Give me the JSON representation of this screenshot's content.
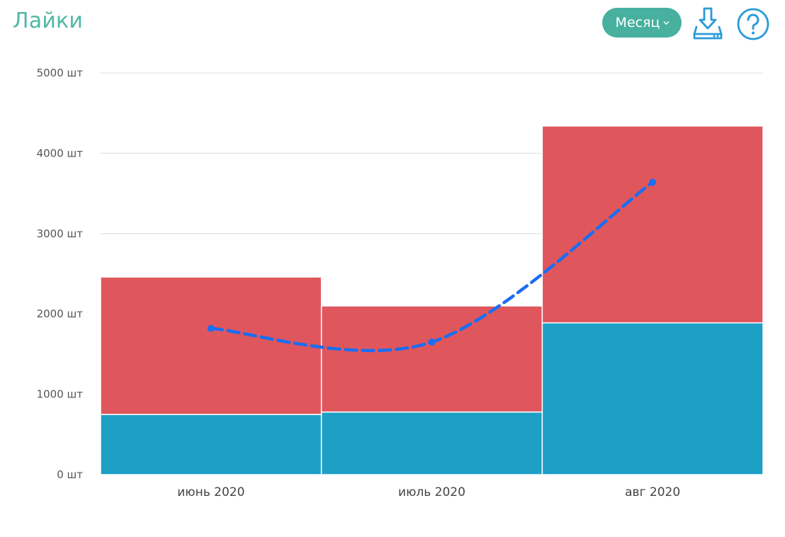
{
  "header": {
    "title": "Лайки",
    "period_label": "Месяц"
  },
  "icons": {
    "download": "download-icon",
    "help": "help-icon",
    "chevron": "chevron-down-icon"
  },
  "colors": {
    "accent": "#47b09f",
    "title": "#4fb8a6",
    "series_bottom": "#1e9fc6",
    "series_top": "#e0565d",
    "trend_line": "#1a6ef0",
    "icon": "#2a9bd8"
  },
  "chart_data": {
    "type": "bar",
    "stacked": true,
    "categories": [
      "июнь 2020",
      "июль 2020",
      "авг 2020"
    ],
    "series": [
      {
        "values": [
          750,
          780,
          1890
        ],
        "color": "#1e9fc6"
      },
      {
        "values": [
          1710,
          1320,
          2450
        ],
        "color": "#e0565d"
      }
    ],
    "trend": {
      "type": "line",
      "style": "dashed",
      "values": [
        1820,
        1650,
        3640
      ],
      "color": "#1a6ef0"
    },
    "ytick_labels": [
      "0 шт",
      "1000 шт",
      "2000 шт",
      "3000 шт",
      "4000 шт",
      "5000 шт"
    ],
    "ytick_values": [
      0,
      1000,
      2000,
      3000,
      4000,
      5000
    ],
    "ylim": [
      0,
      5000
    ],
    "grid": true,
    "legend": "none"
  }
}
